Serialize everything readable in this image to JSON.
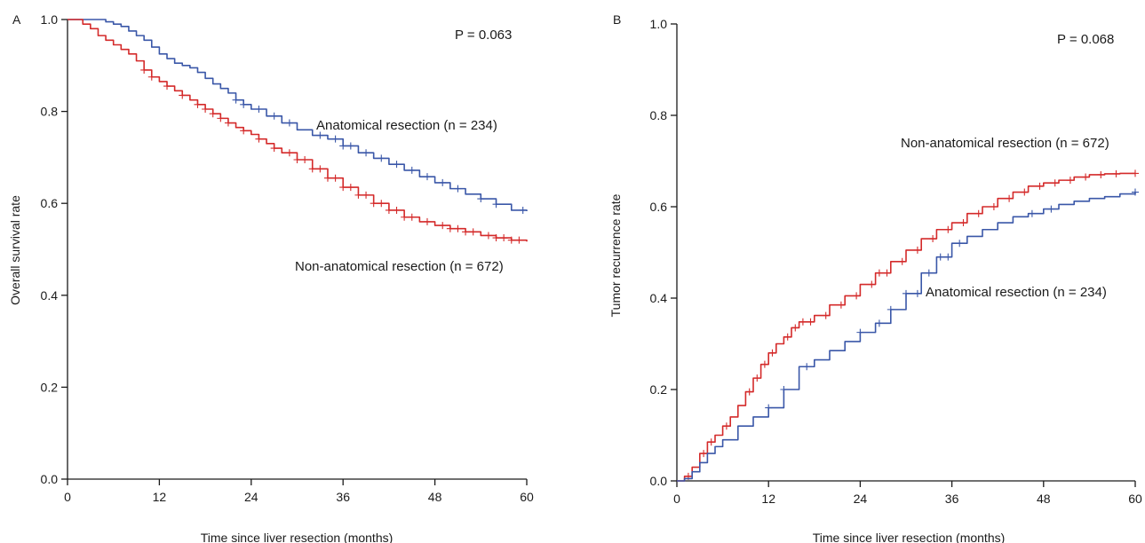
{
  "colors": {
    "anatomical": "#3a57a8",
    "non_anatomical": "#d42a2a",
    "axis": "#1a1a1a"
  },
  "chart_data": [
    {
      "panel": "A",
      "type": "line",
      "step": true,
      "xlabel": "Time since liver resection (months)",
      "ylabel": "Overall survival rate",
      "xlim": [
        0,
        60
      ],
      "ylim": [
        0,
        1
      ],
      "xticks": [
        0,
        12,
        24,
        36,
        48,
        60
      ],
      "yticks": [
        0.0,
        0.2,
        0.4,
        0.6,
        0.8,
        1.0
      ],
      "ytick_labels": [
        "0.0",
        "0.2",
        "0.4",
        "0.6",
        "0.8",
        "1.0"
      ],
      "grid": false,
      "annotation": "P = 0.063",
      "series": [
        {
          "name": "Anatomical resection (n = 234)",
          "color_key": "anatomical",
          "x": [
            0,
            3,
            5,
            6,
            7,
            8,
            9,
            10,
            11,
            12,
            13,
            14,
            15,
            16,
            17,
            18,
            19,
            20,
            21,
            22,
            23,
            24,
            26,
            28,
            30,
            32,
            34,
            36,
            38,
            40,
            42,
            44,
            46,
            48,
            50,
            52,
            54,
            56,
            58,
            60
          ],
          "y": [
            1.0,
            1.0,
            0.995,
            0.99,
            0.985,
            0.975,
            0.965,
            0.955,
            0.94,
            0.925,
            0.915,
            0.905,
            0.9,
            0.895,
            0.885,
            0.872,
            0.86,
            0.85,
            0.84,
            0.825,
            0.815,
            0.805,
            0.79,
            0.775,
            0.76,
            0.748,
            0.74,
            0.725,
            0.71,
            0.698,
            0.685,
            0.672,
            0.658,
            0.645,
            0.632,
            0.62,
            0.61,
            0.598,
            0.585,
            0.583
          ],
          "censored_x": [
            22,
            23,
            25,
            27,
            29,
            33,
            35,
            36,
            37,
            39,
            41,
            43,
            45,
            47,
            49,
            51,
            54,
            56,
            59.5
          ]
        },
        {
          "name": "Non-anatomical resection (n = 672)",
          "color_key": "non_anatomical",
          "x": [
            0,
            2,
            3,
            4,
            5,
            6,
            7,
            8,
            9,
            10,
            11,
            12,
            13,
            14,
            15,
            16,
            17,
            18,
            19,
            20,
            21,
            22,
            23,
            24,
            25,
            26,
            27,
            28,
            30,
            32,
            34,
            36,
            38,
            40,
            42,
            44,
            46,
            48,
            50,
            52,
            54,
            56,
            58,
            60
          ],
          "y": [
            1.0,
            0.99,
            0.98,
            0.965,
            0.955,
            0.945,
            0.935,
            0.925,
            0.91,
            0.89,
            0.875,
            0.865,
            0.855,
            0.845,
            0.835,
            0.825,
            0.815,
            0.805,
            0.795,
            0.785,
            0.775,
            0.765,
            0.758,
            0.75,
            0.74,
            0.73,
            0.72,
            0.71,
            0.695,
            0.675,
            0.655,
            0.635,
            0.618,
            0.6,
            0.585,
            0.57,
            0.56,
            0.552,
            0.545,
            0.538,
            0.53,
            0.525,
            0.52,
            0.517
          ],
          "censored_x": [
            10,
            11,
            13,
            15,
            17,
            18,
            19,
            20,
            21,
            23,
            25,
            27,
            29,
            30,
            31,
            32,
            33,
            34,
            35,
            36,
            37,
            38,
            39,
            40,
            41,
            42,
            43,
            44,
            45,
            47,
            49,
            50,
            51,
            52,
            53,
            55,
            56,
            57,
            58,
            59
          ]
        }
      ]
    },
    {
      "panel": "B",
      "type": "line",
      "step": true,
      "xlabel": "Time since liver resection (months)",
      "ylabel": "Tumor recurrence rate",
      "xlim": [
        0,
        60
      ],
      "ylim": [
        0,
        1
      ],
      "xticks": [
        0,
        12,
        24,
        36,
        48,
        60
      ],
      "yticks": [
        0.0,
        0.2,
        0.4,
        0.6,
        0.8,
        1.0
      ],
      "ytick_labels": [
        "0.0",
        "0.2",
        "0.4",
        "0.6",
        "0.8",
        "1.0"
      ],
      "grid": false,
      "annotation": "P = 0.068",
      "series": [
        {
          "name": "Non-anatomical resection (n = 672)",
          "color_key": "non_anatomical",
          "x": [
            0,
            1,
            2,
            3,
            4,
            5,
            6,
            7,
            8,
            9,
            10,
            11,
            12,
            13,
            14,
            15,
            16,
            18,
            20,
            22,
            24,
            26,
            28,
            30,
            32,
            34,
            36,
            38,
            40,
            42,
            44,
            46,
            48,
            50,
            52,
            54,
            56,
            58,
            60
          ],
          "y": [
            0.0,
            0.01,
            0.03,
            0.06,
            0.085,
            0.1,
            0.12,
            0.14,
            0.165,
            0.195,
            0.225,
            0.255,
            0.28,
            0.3,
            0.315,
            0.335,
            0.348,
            0.362,
            0.385,
            0.405,
            0.43,
            0.455,
            0.48,
            0.505,
            0.53,
            0.55,
            0.565,
            0.585,
            0.6,
            0.618,
            0.632,
            0.645,
            0.652,
            0.658,
            0.665,
            0.67,
            0.672,
            0.673,
            0.673
          ],
          "censored_x": [
            1.5,
            3.5,
            4.5,
            6.5,
            9.5,
            10.5,
            11.5,
            12.5,
            14.5,
            15.5,
            16.5,
            17.5,
            19.5,
            21.5,
            23.5,
            25.5,
            26.5,
            27.5,
            29.5,
            31.5,
            33.5,
            35.5,
            37.5,
            39.5,
            41.5,
            43.5,
            45.5,
            47.5,
            49.5,
            51.5,
            53.5,
            55.5,
            57.5,
            60
          ]
        },
        {
          "name": "Anatomical resection (n = 234)",
          "color_key": "anatomical",
          "x": [
            0,
            1,
            2,
            3,
            4,
            5,
            6,
            8,
            10,
            12,
            14,
            16,
            18,
            20,
            22,
            24,
            26,
            28,
            30,
            32,
            34,
            36,
            38,
            40,
            42,
            44,
            46,
            48,
            50,
            52,
            54,
            56,
            58,
            60
          ],
          "y": [
            0.0,
            0.005,
            0.02,
            0.04,
            0.06,
            0.075,
            0.09,
            0.12,
            0.14,
            0.16,
            0.2,
            0.25,
            0.265,
            0.285,
            0.305,
            0.325,
            0.345,
            0.375,
            0.41,
            0.455,
            0.49,
            0.52,
            0.535,
            0.55,
            0.565,
            0.578,
            0.585,
            0.595,
            0.605,
            0.612,
            0.618,
            0.622,
            0.628,
            0.632
          ],
          "censored_x": [
            12,
            14,
            17,
            24,
            26.5,
            28,
            30,
            31.5,
            33,
            34.5,
            35.5,
            37,
            46.5,
            49,
            60
          ]
        }
      ]
    }
  ],
  "legend_labels": {
    "A": [
      {
        "text": "Anatomical resection (n = 234)",
        "series_index": 0
      },
      {
        "text": "Non-anatomical resection (n = 672)",
        "series_index": 1
      }
    ],
    "B": [
      {
        "text": "Non-anatomical resection (n = 672)",
        "series_index": 0
      },
      {
        "text": "Anatomical resection (n = 234)",
        "series_index": 1
      }
    ]
  },
  "panels": {
    "A": {
      "letter": "A"
    },
    "B": {
      "letter": "B"
    }
  }
}
